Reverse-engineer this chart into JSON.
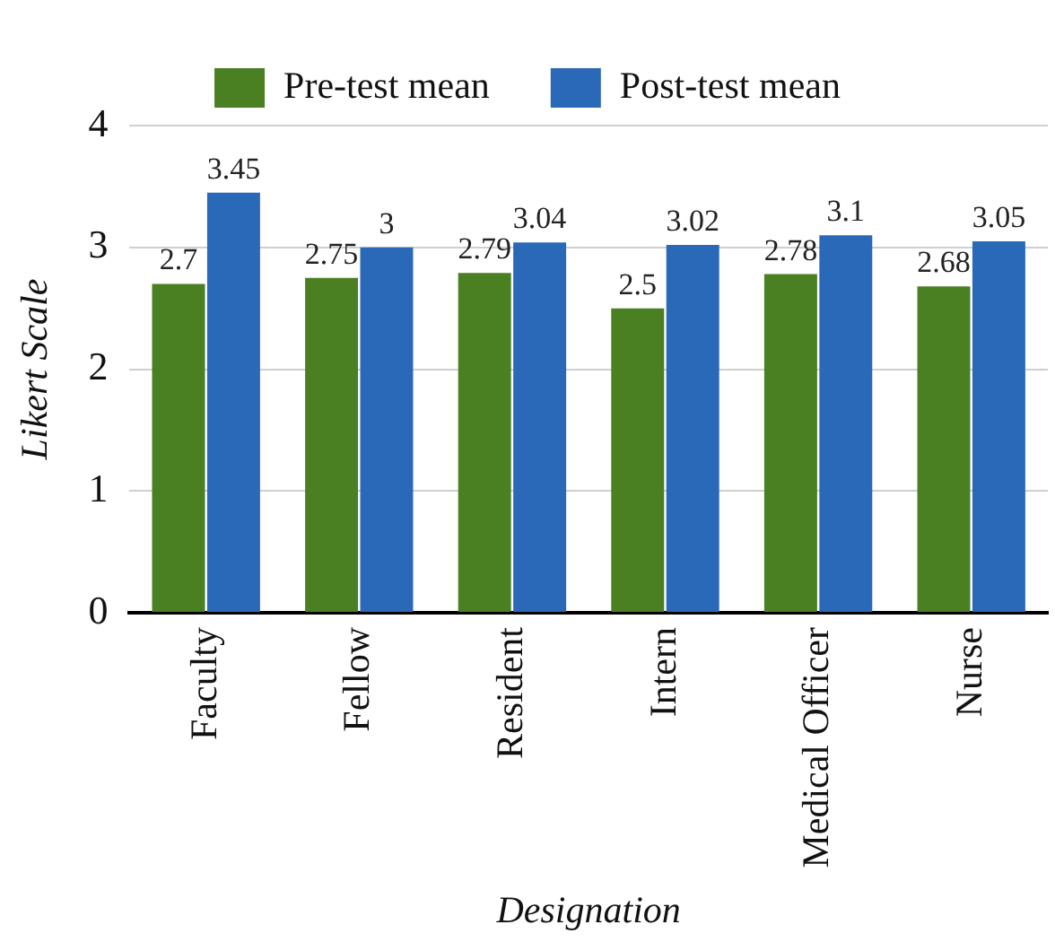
{
  "chart_data": {
    "type": "bar",
    "xlabel": "Designation",
    "ylabel": "Likert Scale",
    "categories": [
      "Faculty",
      "Fellow",
      "Resident",
      "Intern",
      "Medical Officer",
      "Nurse"
    ],
    "series": [
      {
        "name": "Pre-test mean",
        "color": "#4a7f22",
        "values": [
          2.7,
          2.75,
          2.79,
          2.5,
          2.78,
          2.68
        ]
      },
      {
        "name": "Post-test mean",
        "color": "#2a69b8",
        "values": [
          3.45,
          3,
          3.04,
          3.02,
          3.1,
          3.05
        ]
      }
    ],
    "ylim": [
      0,
      4
    ],
    "yticks": [
      0,
      1,
      2,
      3,
      4
    ],
    "grid": "y",
    "legend": "top",
    "data_labels": true
  }
}
